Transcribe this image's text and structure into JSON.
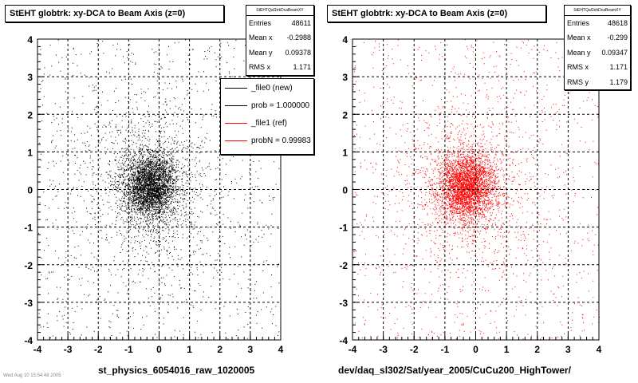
{
  "left_panel": {
    "title": "StEHT globtrk: xy-DCA to Beam Axis (z=0)",
    "stats": {
      "name": "StEHTQaGtrkDcaBeamXY",
      "rows": [
        {
          "label": "Entries",
          "value": "48611"
        },
        {
          "label": "Mean x",
          "value": "-0.2988"
        },
        {
          "label": "Mean y",
          "value": "0.09378"
        },
        {
          "label": "RMS x",
          "value": "1.171"
        }
      ]
    },
    "legend": [
      {
        "label": "_file0 (new)",
        "color": "#000000"
      },
      {
        "label": "prob = 1.000000",
        "color": "#000000"
      },
      {
        "label": "_file1 (ref)",
        "color": "#ff0000"
      },
      {
        "label": "probN = 0.99983",
        "color": "#ff0000"
      }
    ],
    "xlabel": "st_physics_6054016_raw_1020005"
  },
  "right_panel": {
    "title": "StEHT globtrk: xy-DCA to Beam Axis (z=0)",
    "stats": {
      "name": "StEHTQaGtrkDcaBeamXY",
      "rows": [
        {
          "label": "Entries",
          "value": "48618"
        },
        {
          "label": "Mean x",
          "value": "-0.299"
        },
        {
          "label": "Mean y",
          "value": "0.09347"
        },
        {
          "label": "RMS x",
          "value": "1.171"
        },
        {
          "label": "RMS y",
          "value": "1.179"
        }
      ]
    },
    "xlabel": "dev/daq_sl302/Sat/year_2005/CuCu200_HighTower/"
  },
  "footnote": "Wed Aug 10 15:54:48 2005",
  "chart_data": [
    {
      "type": "scatter",
      "title": "StEHT globtrk: xy-DCA to Beam Axis (z=0)",
      "xlabel": "st_physics_6054016_raw_1020005",
      "ylabel": "",
      "xlim": [
        -4,
        4
      ],
      "ylim": [
        -4,
        4
      ],
      "xticks": [
        -4,
        -3,
        -2,
        -1,
        0,
        1,
        2,
        3,
        4
      ],
      "yticks": [
        -4,
        -3,
        -2,
        -1,
        0,
        1,
        2,
        3,
        4
      ],
      "grid": true,
      "color": "#000000",
      "series": [
        {
          "name": "_file0 (new)",
          "entries": 48611,
          "mean_x": -0.2988,
          "mean_y": 0.09378,
          "rms_x": 1.171
        }
      ]
    },
    {
      "type": "scatter",
      "title": "StEHT globtrk: xy-DCA to Beam Axis (z=0)",
      "xlabel": "dev/daq_sl302/Sat/year_2005/CuCu200_HighTower/",
      "ylabel": "",
      "xlim": [
        -4,
        4
      ],
      "ylim": [
        -4,
        4
      ],
      "xticks": [
        -4,
        -3,
        -2,
        -1,
        0,
        1,
        2,
        3,
        4
      ],
      "yticks": [
        -4,
        -3,
        -2,
        -1,
        0,
        1,
        2,
        3,
        4
      ],
      "grid": true,
      "color": "#ff0000",
      "series": [
        {
          "name": "_file1 (ref)",
          "entries": 48618,
          "mean_x": -0.299,
          "mean_y": 0.09347,
          "rms_x": 1.171,
          "rms_y": 1.179
        }
      ]
    }
  ]
}
